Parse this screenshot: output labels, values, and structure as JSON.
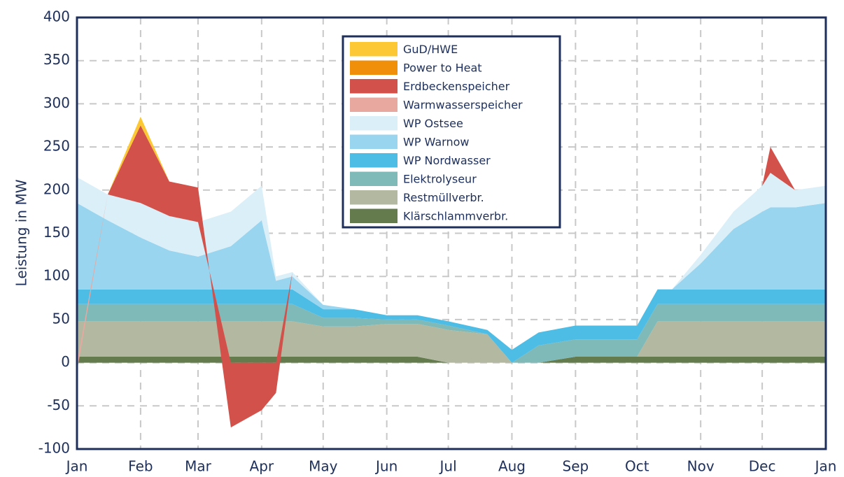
{
  "chart_data": {
    "type": "stacked_area",
    "y_label": "Leistung in MW",
    "x": [
      0,
      15,
      31,
      45,
      59,
      75,
      90,
      97,
      105,
      120,
      135,
      151,
      166,
      181,
      200,
      212,
      225,
      243,
      260,
      273,
      283,
      290,
      304,
      320,
      334,
      338,
      350,
      365
    ],
    "xlim": [
      0,
      365
    ],
    "xticks": [
      {
        "value": 0,
        "label": "Jan"
      },
      {
        "value": 31,
        "label": "Feb"
      },
      {
        "value": 59,
        "label": "Mar"
      },
      {
        "value": 90,
        "label": "Apr"
      },
      {
        "value": 120,
        "label": "May"
      },
      {
        "value": 151,
        "label": "Jun"
      },
      {
        "value": 181,
        "label": "Jul"
      },
      {
        "value": 212,
        "label": "Aug"
      },
      {
        "value": 243,
        "label": "Sep"
      },
      {
        "value": 273,
        "label": "Oct"
      },
      {
        "value": 304,
        "label": "Nov"
      },
      {
        "value": 334,
        "label": "Dec"
      },
      {
        "value": 365,
        "label": "Jan"
      }
    ],
    "ylim": [
      -100,
      400
    ],
    "yticks": [
      -100,
      -50,
      0,
      50,
      100,
      150,
      200,
      250,
      300,
      350,
      400
    ],
    "grid": true,
    "legend": "upper center",
    "series": [
      {
        "name": "GuD/HWE",
        "color": "#fcc833",
        "values": [
          0,
          0,
          10,
          0,
          0,
          0,
          0,
          0,
          0,
          0,
          0,
          0,
          0,
          0,
          0,
          0,
          0,
          0,
          0,
          0,
          0,
          0,
          0,
          0,
          0,
          0,
          0,
          0
        ]
      },
      {
        "name": "Power to Heat",
        "color": "#f0900a",
        "values": [
          0,
          0,
          0,
          0,
          0,
          0,
          0,
          0,
          0,
          0,
          0,
          0,
          0,
          0,
          0,
          0,
          0,
          0,
          0,
          0,
          0,
          0,
          0,
          0,
          0,
          0,
          0,
          0
        ]
      },
      {
        "name": "Erdbeckenspeicher",
        "color": "#d2514a",
        "values": [
          0,
          0,
          90,
          40,
          40,
          -75,
          -55,
          -35,
          0,
          0,
          0,
          0,
          0,
          0,
          0,
          0,
          0,
          0,
          0,
          0,
          0,
          0,
          0,
          0,
          0,
          30,
          0,
          0
        ]
      },
      {
        "name": "Warmwasserspeicher",
        "color": "#e8a8a0",
        "values": [
          -10,
          0,
          0,
          0,
          0,
          0,
          0,
          0,
          0,
          0,
          0,
          0,
          0,
          0,
          0,
          0,
          0,
          0,
          0,
          0,
          0,
          0,
          0,
          0,
          0,
          0,
          0,
          0
        ]
      },
      {
        "name": "WP Ostsee",
        "color": "#dbeff8",
        "values": [
          30,
          30,
          40,
          40,
          40,
          40,
          40,
          5,
          5,
          0,
          0,
          0,
          0,
          0,
          0,
          0,
          0,
          0,
          0,
          0,
          0,
          0,
          10,
          20,
          30,
          40,
          20,
          20
        ]
      },
      {
        "name": "WP Warnow",
        "color": "#9ad5ef",
        "values": [
          100,
          80,
          60,
          45,
          38,
          50,
          80,
          10,
          15,
          5,
          0,
          0,
          0,
          0,
          0,
          0,
          0,
          0,
          0,
          0,
          0,
          0,
          30,
          70,
          90,
          95,
          95,
          100
        ]
      },
      {
        "name": "WP Nordwasser",
        "color": "#4dbde6",
        "values": [
          17,
          17,
          17,
          17,
          17,
          17,
          17,
          17,
          17,
          10,
          10,
          5,
          5,
          5,
          5,
          15,
          15,
          16,
          16,
          16,
          17,
          17,
          17,
          17,
          17,
          17,
          17,
          17
        ]
      },
      {
        "name": "Elektrolyseur",
        "color": "#7fb9b8",
        "values": [
          20,
          20,
          20,
          20,
          20,
          20,
          20,
          20,
          20,
          10,
          10,
          5,
          5,
          5,
          0,
          0,
          20,
          20,
          20,
          20,
          20,
          20,
          20,
          20,
          20,
          20,
          20,
          20
        ]
      },
      {
        "name": "Restmüllverbr.",
        "color": "#b3b9a1",
        "values": [
          41,
          41,
          41,
          41,
          41,
          41,
          41,
          41,
          41,
          35,
          35,
          38,
          38,
          38,
          33,
          0,
          0,
          0,
          0,
          0,
          41,
          41,
          41,
          41,
          41,
          41,
          41,
          41
        ]
      },
      {
        "name": "Klärschlammverbr.",
        "color": "#637b4d",
        "values": [
          7,
          7,
          7,
          7,
          7,
          7,
          7,
          7,
          7,
          7,
          7,
          7,
          7,
          0,
          0,
          0,
          0,
          7,
          7,
          7,
          7,
          7,
          7,
          7,
          7,
          7,
          7,
          7
        ]
      }
    ]
  }
}
